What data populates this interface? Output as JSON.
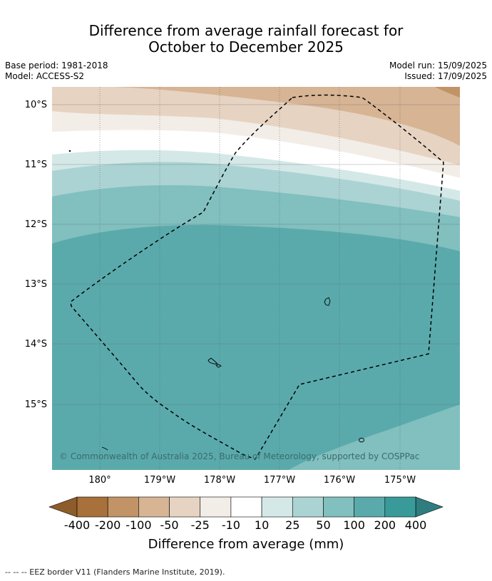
{
  "title": {
    "line1": "Difference from average rainfall forecast for",
    "line2": "October to December 2025"
  },
  "meta": {
    "base_period": "Base period: 1981-2018",
    "model": "Model: ACCESS-S2",
    "model_run": "Model run: 15/09/2025",
    "issued": "Issued: 17/09/2025"
  },
  "axes": {
    "lat_labels": [
      "10°S",
      "11°S",
      "12°S",
      "13°S",
      "14°S",
      "15°S"
    ],
    "lon_labels": [
      "180°",
      "179°W",
      "178°W",
      "177°W",
      "176°W",
      "175°W"
    ]
  },
  "copyright": "© Commonwealth of Australia 2025, Bureau of Meteorology, supported by COSPPac",
  "colorbar": {
    "title": "Difference from average (mm)",
    "tick_labels": [
      "-400",
      "-200",
      "-100",
      "-50",
      "-25",
      "-10",
      "10",
      "25",
      "50",
      "100",
      "200",
      "400"
    ],
    "colors": [
      "#a8703a",
      "#c29366",
      "#d6b494",
      "#e6d3c2",
      "#f3ede7",
      "#ffffff",
      "#d4e8e7",
      "#abd3d3",
      "#82bfbf",
      "#5aaaac",
      "#389b9a"
    ],
    "under_color": "#8e5b2b",
    "over_color": "#2f7d7e"
  },
  "footnote": "-- -- -- EEZ border V11 (Flanders Marine Institute, 2019)."
}
